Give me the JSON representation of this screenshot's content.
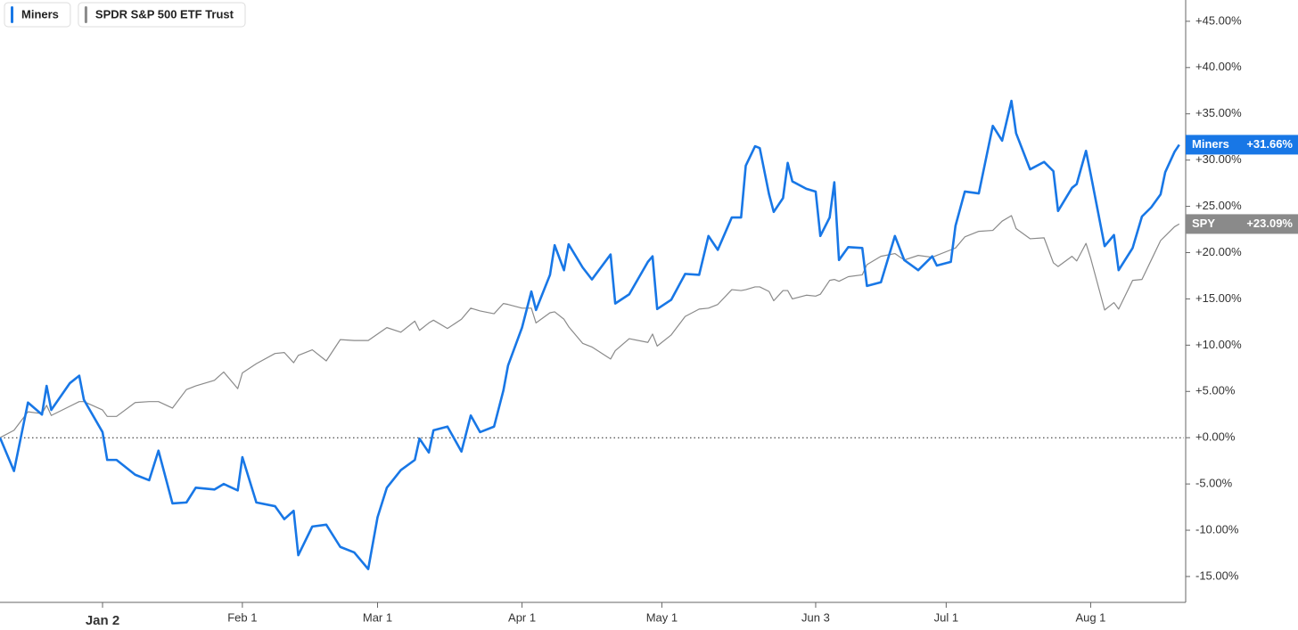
{
  "chart_data": {
    "type": "line",
    "x": [
      "Dec 11",
      "Dec 14",
      "Dec 17",
      "Dec 20",
      "Dec 21",
      "Dec 22",
      "Dec 26",
      "Dec 28",
      "Dec 29",
      "Jan 2",
      "Jan 3",
      "Jan 5",
      "Jan 9",
      "Jan 12",
      "Jan 14",
      "Jan 17",
      "Jan 20",
      "Jan 22",
      "Jan 26",
      "Jan 28",
      "Jan 31",
      "Feb 1",
      "Feb 4",
      "Feb 8",
      "Feb 10",
      "Feb 12",
      "Feb 13",
      "Feb 16",
      "Feb 19",
      "Feb 22",
      "Feb 25",
      "Feb 28",
      "Mar 1",
      "Mar 3",
      "Mar 6",
      "Mar 9",
      "Mar 10",
      "Mar 12",
      "Mar 13",
      "Mar 16",
      "Mar 19",
      "Mar 21",
      "Mar 23",
      "Mar 26",
      "Mar 28",
      "Mar 29",
      "Apr 1",
      "Apr 3",
      "Apr 4",
      "Apr 7",
      "Apr 8",
      "Apr 10",
      "Apr 11",
      "Apr 14",
      "Apr 16",
      "Apr 20",
      "Apr 21",
      "Apr 24",
      "Apr 28",
      "Apr 29",
      "Apr 30",
      "May 3",
      "May 6",
      "May 9",
      "May 11",
      "May 13",
      "May 16",
      "May 18",
      "May 19",
      "May 21",
      "May 22",
      "May 24",
      "May 25",
      "May 27",
      "May 28",
      "May 29",
      "Jun 1",
      "Jun 3",
      "Jun 4",
      "Jun 6",
      "Jun 7",
      "Jun 8",
      "Jun 10",
      "Jun 13",
      "Jun 14",
      "Jun 17",
      "Jun 20",
      "Jun 22",
      "Jun 25",
      "Jun 28",
      "Jun 29",
      "Jul 2",
      "Jul 3",
      "Jul 5",
      "Jul 8",
      "Jul 11",
      "Jul 13",
      "Jul 15",
      "Jul 16",
      "Jul 19",
      "Jul 22",
      "Jul 24",
      "Jul 25",
      "Jul 28",
      "Jul 29",
      "Jul 31",
      "Aug 1",
      "Aug 4",
      "Aug 6",
      "Aug 7",
      "Aug 10",
      "Aug 12",
      "Aug 14",
      "Aug 16",
      "Aug 17",
      "Aug 19",
      "Aug 20"
    ],
    "series": [
      {
        "name": "Miners",
        "tag": "Miners",
        "last_label": "+31.66%",
        "color": "#1877e6",
        "values": [
          0,
          -3.6,
          3.8,
          2.5,
          5.6,
          3.0,
          5.9,
          6.7,
          4.1,
          0.6,
          -2.4,
          -2.4,
          -4.0,
          -4.6,
          -1.4,
          -7.1,
          -7.0,
          -5.4,
          -5.6,
          -5.0,
          -5.7,
          -2.1,
          -7.0,
          -7.4,
          -8.8,
          -7.9,
          -12.7,
          -9.6,
          -9.4,
          -11.8,
          -12.4,
          -14.2,
          -8.6,
          -5.4,
          -3.5,
          -2.4,
          -0.1,
          -1.6,
          0.8,
          1.2,
          -1.5,
          2.4,
          0.6,
          1.2,
          5.1,
          7.8,
          11.9,
          15.8,
          13.8,
          17.6,
          20.8,
          18.1,
          20.9,
          18.4,
          17.1,
          19.8,
          14.5,
          15.5,
          19.0,
          19.6,
          13.9,
          14.9,
          17.7,
          17.6,
          21.8,
          20.3,
          23.8,
          23.8,
          29.4,
          31.5,
          31.3,
          26.3,
          24.4,
          25.9,
          29.7,
          27.7,
          26.9,
          26.6,
          21.8,
          23.8,
          27.6,
          19.2,
          20.6,
          20.5,
          16.4,
          16.8,
          21.8,
          19.2,
          18.1,
          19.6,
          18.6,
          19.0,
          22.9,
          26.6,
          26.4,
          33.7,
          32.1,
          36.4,
          32.9,
          29.0,
          29.8,
          28.8,
          24.5,
          27.0,
          27.4,
          31.0,
          28.5,
          20.7,
          21.9,
          18.1,
          20.5,
          23.9,
          24.9,
          26.3,
          28.7,
          30.9,
          31.66
        ]
      },
      {
        "name": "SPDR S&P 500 ETF Trust",
        "tag": "SPY",
        "last_label": "+23.09%",
        "color": "#8a8a8a",
        "values": [
          0,
          0.8,
          2.8,
          2.6,
          3.5,
          2.4,
          3.4,
          3.9,
          3.9,
          3.0,
          2.3,
          2.3,
          3.8,
          3.9,
          3.9,
          3.2,
          5.2,
          5.6,
          6.2,
          7.1,
          5.3,
          7.0,
          8.0,
          9.1,
          9.2,
          8.1,
          8.9,
          9.5,
          8.3,
          10.6,
          10.5,
          10.5,
          11.2,
          11.9,
          11.4,
          12.6,
          11.6,
          12.4,
          12.7,
          11.8,
          12.8,
          14.0,
          13.7,
          13.4,
          14.5,
          14.4,
          14.0,
          14.0,
          12.4,
          13.5,
          13.6,
          12.8,
          12.0,
          10.2,
          9.8,
          8.5,
          9.4,
          10.7,
          10.3,
          11.2,
          9.9,
          11.1,
          13.1,
          13.9,
          14.0,
          14.4,
          16.0,
          15.9,
          16.0,
          16.3,
          16.3,
          15.8,
          14.8,
          15.9,
          15.9,
          15.0,
          15.4,
          15.3,
          15.5,
          17.0,
          17.1,
          16.9,
          17.4,
          17.6,
          18.7,
          19.6,
          19.9,
          19.2,
          19.7,
          19.5,
          19.7,
          20.3,
          20.5,
          21.7,
          22.3,
          22.4,
          23.4,
          24.0,
          22.6,
          21.5,
          21.6,
          18.9,
          18.5,
          19.6,
          19.1,
          21.0,
          19.4,
          13.8,
          14.6,
          13.9,
          17.0,
          17.1,
          19.2,
          21.3,
          21.8,
          22.8,
          23.09
        ]
      }
    ],
    "xlim": [
      "Dec 11",
      "Aug 21"
    ],
    "xticks": [
      "Jan 2",
      "Feb 1",
      "Mar 1",
      "Apr 1",
      "May 1",
      "Jun 3",
      "Jul 1",
      "Aug 1"
    ],
    "ylim": [
      -17.7,
      47.3
    ],
    "yticks": [
      {
        "value": -15,
        "label": "-15.00%"
      },
      {
        "value": -10,
        "label": "-10.00%"
      },
      {
        "value": -5,
        "label": "-5.00%"
      },
      {
        "value": 0,
        "label": "+0.00%"
      },
      {
        "value": 5,
        "label": "+5.00%"
      },
      {
        "value": 10,
        "label": "+10.00%"
      },
      {
        "value": 15,
        "label": "+15.00%"
      },
      {
        "value": 20,
        "label": "+20.00%"
      },
      {
        "value": 25,
        "label": "+25.00%"
      },
      {
        "value": 30,
        "label": "+30.00%"
      },
      {
        "value": 35,
        "label": "+35.00%"
      },
      {
        "value": 40,
        "label": "+40.00%"
      },
      {
        "value": 45,
        "label": "+45.00%"
      }
    ],
    "grid": false
  }
}
